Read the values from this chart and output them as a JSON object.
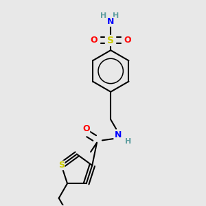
{
  "background_color": "#e8e8e8",
  "bond_color": "#000000",
  "bond_width": 1.5,
  "atom_colors": {
    "O": "#ff0000",
    "N": "#0000ff",
    "S_sulfonamide": "#cccc00",
    "S_thiophene": "#cccc00",
    "H": "#5f9ea0"
  },
  "font_size": 9,
  "figsize": [
    3.0,
    3.0
  ],
  "dpi": 100
}
